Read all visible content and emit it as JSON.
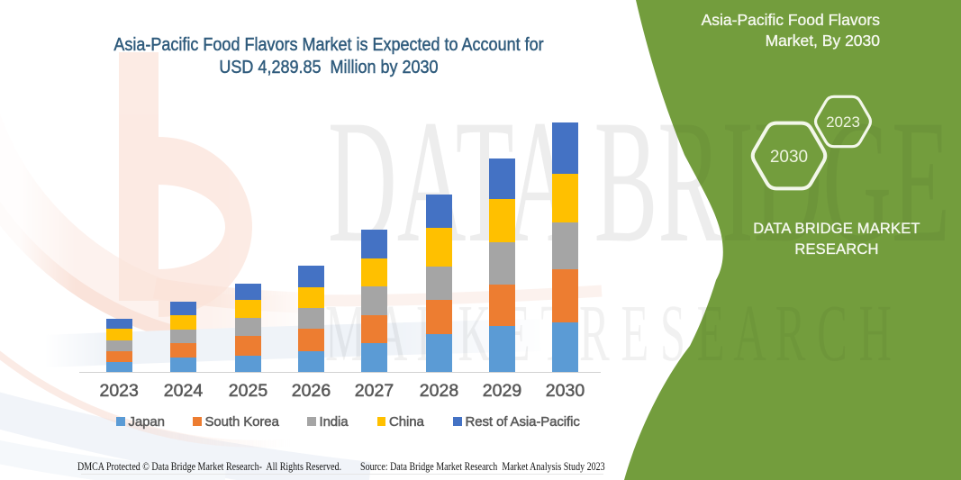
{
  "page": {
    "background": "#ffffff",
    "accent_green": "#739D3D",
    "title_color": "#2F5B7C"
  },
  "title": {
    "line1": "Asia-Pacific Food Flavors Market is Expected to Account for",
    "line2": "USD 4,289.85  Million by 2030"
  },
  "chart_data": {
    "type": "bar",
    "subtype": "stacked-vertical",
    "unit": "USD Million (estimated from bar heights; 2030 total = 4,289.85)",
    "categories": [
      "2023",
      "2024",
      "2025",
      "2026",
      "2027",
      "2028",
      "2029",
      "2030"
    ],
    "series": [
      {
        "name": "Japan",
        "color": "#5B9BD5",
        "values": [
          166,
          250,
          285,
          361,
          498,
          644,
          796,
          847
        ]
      },
      {
        "name": "South Korea",
        "color": "#ED7D31",
        "values": [
          194,
          247,
          332,
          383,
          485,
          594,
          703,
          926
        ]
      },
      {
        "name": "India",
        "color": "#A5A5A5",
        "values": [
          188,
          239,
          307,
          360,
          490,
          582,
          738,
          802
        ]
      },
      {
        "name": "China",
        "color": "#FFC000",
        "values": [
          195,
          248,
          312,
          355,
          484,
          656,
          738,
          844
        ]
      },
      {
        "name": "Rest of Asia-Pacific",
        "color": "#4472C4",
        "values": [
          172,
          220,
          290,
          371,
          495,
          582,
          701,
          871
        ]
      }
    ],
    "totals": [
      915,
      1204,
      1526,
      1830,
      2452,
      3058,
      3676,
      4290
    ],
    "title": "Asia-Pacific Food Flavors Market is Expected to Account for USD 4,289.85 Million by 2030",
    "xlabel": "",
    "ylabel": "",
    "y_axis_visible": false,
    "grid": false,
    "legend_position": "bottom"
  },
  "watermark": {
    "big_text": "DATA BRIDGE",
    "sub_text": "MARKET RESEARCH"
  },
  "side_panel": {
    "title_line1": "Asia-Pacific Food Flavors",
    "title_line2": "Market, By 2030",
    "hexagon_front_label": "2030",
    "hexagon_back_label": "2023",
    "brand_line1": "DATA BRIDGE MARKET",
    "brand_line2": "RESEARCH",
    "panel_color": "#739D3D"
  },
  "footer": {
    "left": "DMCA Protected © Data Bridge Market Research-  All Rights Reserved.",
    "right": "Source: Data Bridge Market Research  Market Analysis Study 2023"
  }
}
